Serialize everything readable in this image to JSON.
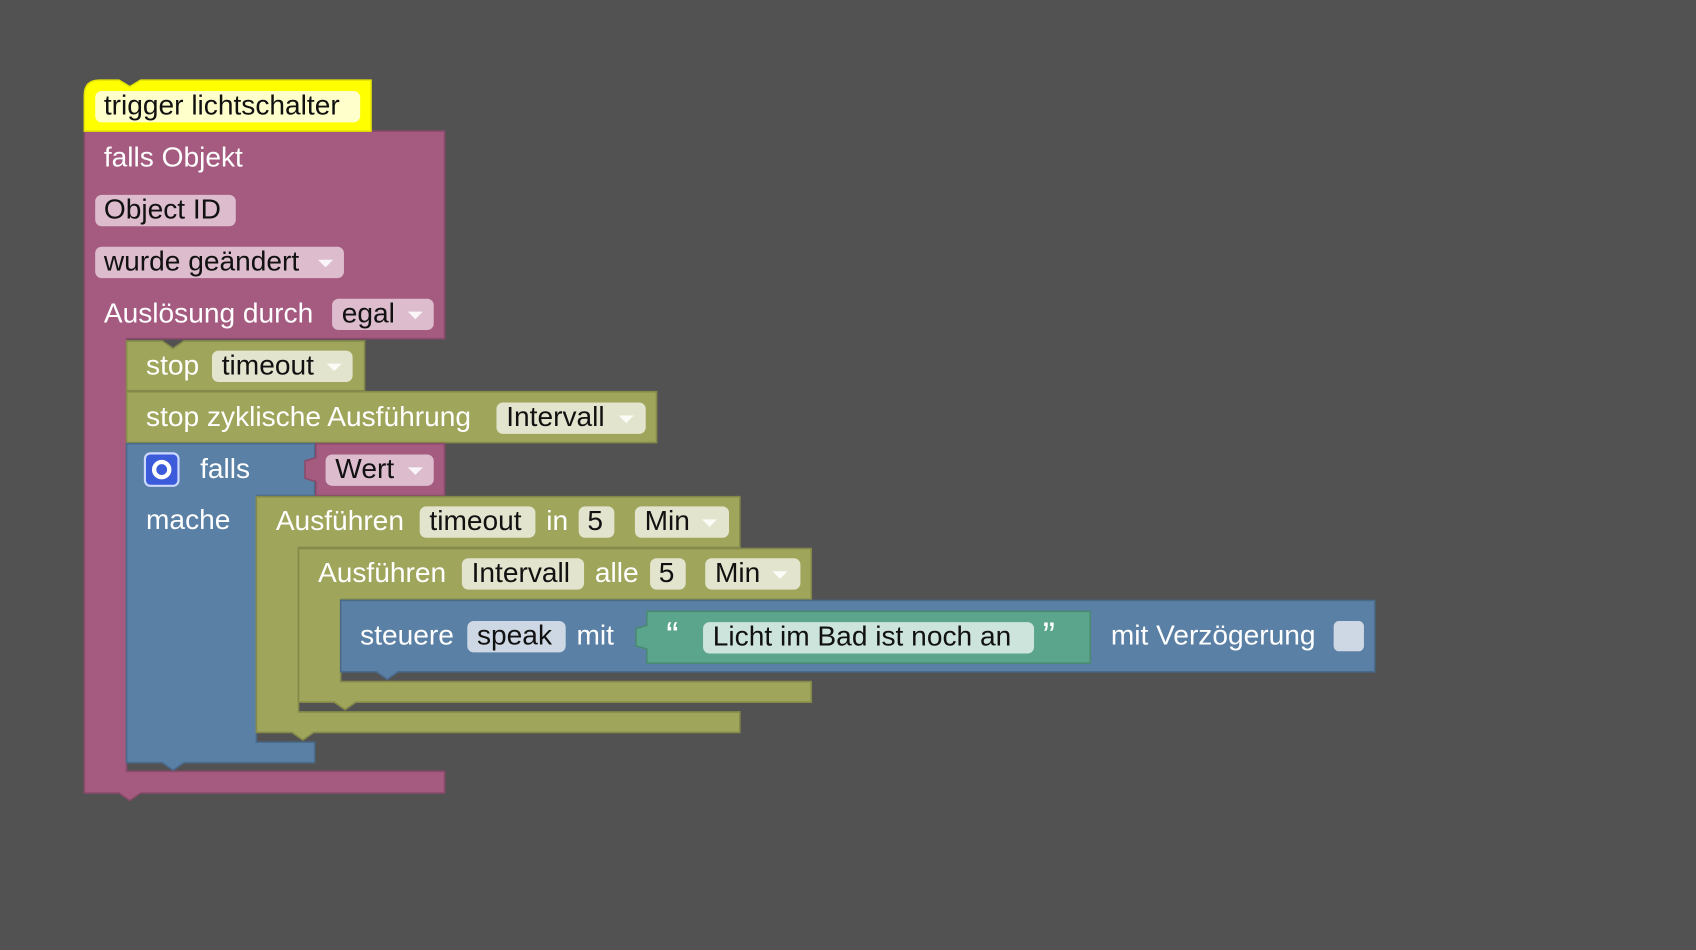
{
  "blocks": {
    "trigger": {
      "label": "trigger lichtschalter"
    },
    "on_change": {
      "label": "falls Objekt",
      "object_id": "Object ID",
      "condition": "wurde geändert",
      "trigger_label": "Auslösung durch",
      "trigger_value": "egal"
    },
    "stop_timeout": {
      "label": "stop",
      "field": "timeout"
    },
    "stop_interval": {
      "label": "stop zyklische Ausführung",
      "field": "Intervall"
    },
    "if": {
      "label": "falls",
      "input": "Wert",
      "do": "mache"
    },
    "timeout": {
      "label": "Ausführen",
      "name": "timeout",
      "in": "in",
      "value": 5,
      "unit": "Min"
    },
    "interval": {
      "label": "Ausführen",
      "name": "Intervall",
      "every": "alle",
      "value": 5,
      "unit": "Min"
    },
    "control": {
      "label": "steuere",
      "target": "speak",
      "with": "mit",
      "open_quote": "“",
      "text": "Licht im Bad ist noch an",
      "close_quote": "”",
      "delay": "mit Verzögerung"
    }
  }
}
